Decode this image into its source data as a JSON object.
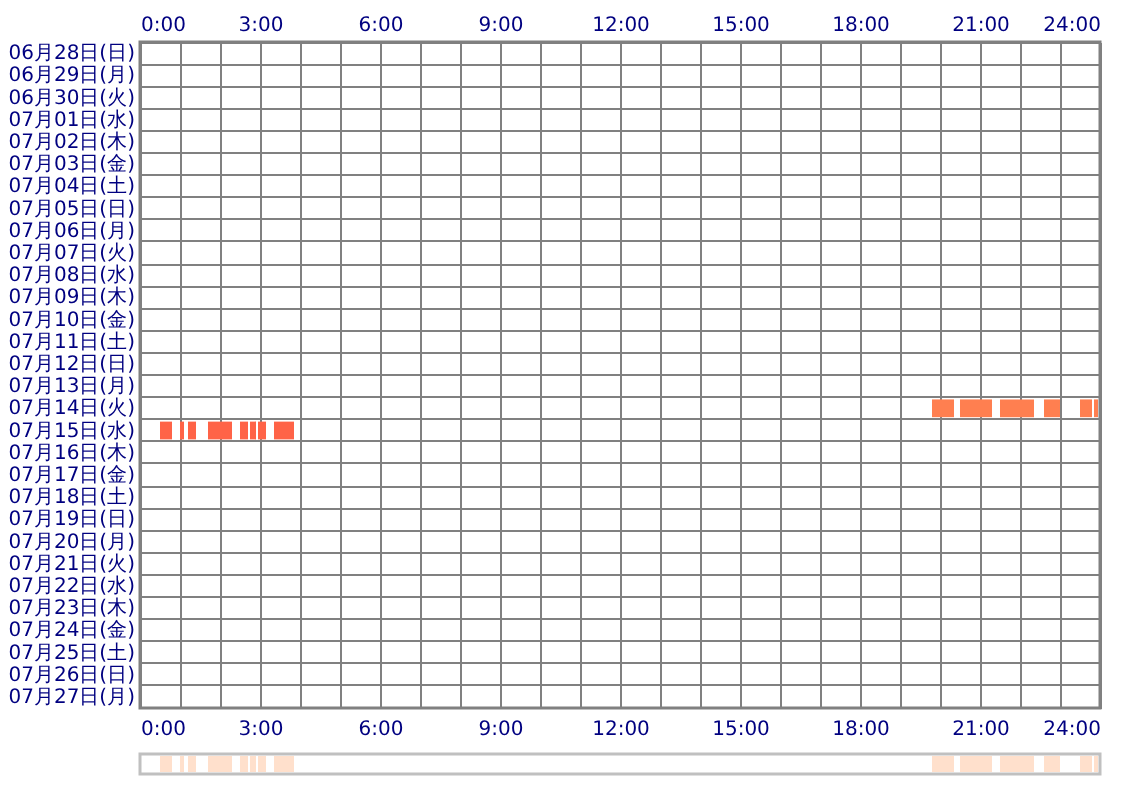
{
  "chart_data": [
    {
      "type": "bar",
      "orientation": "horizontal",
      "grid": true,
      "categories": [
        "06月28日(日)",
        "06月29日(月)",
        "06月30日(火)",
        "07月01日(水)",
        "07月02日(木)",
        "07月03日(金)",
        "07月04日(土)",
        "07月05日(日)",
        "07月06日(月)",
        "07月07日(火)",
        "07月08日(水)",
        "07月09日(木)",
        "07月10日(金)",
        "07月11日(土)",
        "07月12日(日)",
        "07月13日(月)",
        "07月14日(火)",
        "07月15日(水)",
        "07月16日(木)",
        "07月17日(金)",
        "07月18日(土)",
        "07月19日(日)",
        "07月20日(月)",
        "07月21日(火)",
        "07月22日(水)",
        "07月23日(木)",
        "07月24日(金)",
        "07月25日(土)",
        "07月26日(日)",
        "07月27日(月)"
      ],
      "xlim": [
        0,
        24
      ],
      "xticks": [
        {
          "value": 0,
          "label": "0:00"
        },
        {
          "value": 1,
          "label": null
        },
        {
          "value": 2,
          "label": null
        },
        {
          "value": 3,
          "label": "3:00"
        },
        {
          "value": 4,
          "label": null
        },
        {
          "value": 5,
          "label": null
        },
        {
          "value": 6,
          "label": "6:00"
        },
        {
          "value": 7,
          "label": null
        },
        {
          "value": 8,
          "label": null
        },
        {
          "value": 9,
          "label": "9:00"
        },
        {
          "value": 10,
          "label": null
        },
        {
          "value": 11,
          "label": null
        },
        {
          "value": 12,
          "label": "12:00"
        },
        {
          "value": 13,
          "label": null
        },
        {
          "value": 14,
          "label": null
        },
        {
          "value": 15,
          "label": "15:00"
        },
        {
          "value": 16,
          "label": null
        },
        {
          "value": 17,
          "label": null
        },
        {
          "value": 18,
          "label": "18:00"
        },
        {
          "value": 19,
          "label": null
        },
        {
          "value": 20,
          "label": null
        },
        {
          "value": 21,
          "label": "21:00"
        },
        {
          "value": 22,
          "label": null
        },
        {
          "value": 23,
          "label": null
        },
        {
          "value": 24,
          "label": "24:00"
        }
      ],
      "x2lim": [
        0,
        24
      ],
      "x2ticks": [
        {
          "value": 0,
          "label": "0:00"
        },
        {
          "value": 1,
          "label": null
        },
        {
          "value": 2,
          "label": null
        },
        {
          "value": 3,
          "label": "3:00"
        },
        {
          "value": 4,
          "label": null
        },
        {
          "value": 5,
          "label": null
        },
        {
          "value": 6,
          "label": "6:00"
        },
        {
          "value": 7,
          "label": null
        },
        {
          "value": 8,
          "label": null
        },
        {
          "value": 9,
          "label": "9:00"
        },
        {
          "value": 10,
          "label": null
        },
        {
          "value": 11,
          "label": null
        },
        {
          "value": 12,
          "label": "12:00"
        },
        {
          "value": 13,
          "label": null
        },
        {
          "value": 14,
          "label": null
        },
        {
          "value": 15,
          "label": "15:00"
        },
        {
          "value": 16,
          "label": null
        },
        {
          "value": 17,
          "label": null
        },
        {
          "value": 18,
          "label": "18:00"
        },
        {
          "value": 19,
          "label": null
        },
        {
          "value": 20,
          "label": null
        },
        {
          "value": 21,
          "label": "21:00"
        },
        {
          "value": 22,
          "label": null
        },
        {
          "value": 23,
          "label": null
        },
        {
          "value": 24,
          "label": "24:00"
        }
      ],
      "series": [
        {
          "base": [
            null,
            null,
            null,
            null,
            null,
            null,
            null,
            null,
            null,
            null,
            null,
            null,
            null,
            null,
            null,
            null,
            19.8,
            0.5,
            null,
            null,
            null,
            null,
            null,
            null,
            null,
            null,
            null,
            null,
            null,
            null
          ],
          "values": [
            null,
            null,
            null,
            null,
            null,
            null,
            null,
            null,
            null,
            null,
            null,
            null,
            null,
            null,
            null,
            null,
            0.55,
            0.3,
            null,
            null,
            null,
            null,
            null,
            null,
            null,
            null,
            null,
            null,
            null,
            null
          ],
          "colors": [
            null,
            null,
            null,
            null,
            null,
            null,
            null,
            null,
            null,
            null,
            null,
            null,
            null,
            null,
            null,
            null,
            "#ff7f50",
            "#ff6347",
            null,
            null,
            null,
            null,
            null,
            null,
            null,
            null,
            null,
            null,
            null,
            null
          ]
        },
        {
          "base": [
            null,
            null,
            null,
            null,
            null,
            null,
            null,
            null,
            null,
            null,
            null,
            null,
            null,
            null,
            null,
            null,
            20.5,
            1.0,
            null,
            null,
            null,
            null,
            null,
            null,
            null,
            null,
            null,
            null,
            null,
            null
          ],
          "values": [
            null,
            null,
            null,
            null,
            null,
            null,
            null,
            null,
            null,
            null,
            null,
            null,
            null,
            null,
            null,
            null,
            0.8,
            0.1,
            null,
            null,
            null,
            null,
            null,
            null,
            null,
            null,
            null,
            null,
            null,
            null
          ],
          "colors": [
            null,
            null,
            null,
            null,
            null,
            null,
            null,
            null,
            null,
            null,
            null,
            null,
            null,
            null,
            null,
            null,
            "#ff7f50",
            "#ff6347",
            null,
            null,
            null,
            null,
            null,
            null,
            null,
            null,
            null,
            null,
            null,
            null
          ]
        },
        {
          "base": [
            null,
            null,
            null,
            null,
            null,
            null,
            null,
            null,
            null,
            null,
            null,
            null,
            null,
            null,
            null,
            null,
            21.5,
            1.2,
            null,
            null,
            null,
            null,
            null,
            null,
            null,
            null,
            null,
            null,
            null,
            null
          ],
          "values": [
            null,
            null,
            null,
            null,
            null,
            null,
            null,
            null,
            null,
            null,
            null,
            null,
            null,
            null,
            null,
            null,
            0.85,
            0.2,
            null,
            null,
            null,
            null,
            null,
            null,
            null,
            null,
            null,
            null,
            null,
            null
          ],
          "colors": [
            null,
            null,
            null,
            null,
            null,
            null,
            null,
            null,
            null,
            null,
            null,
            null,
            null,
            null,
            null,
            null,
            "#ff7f50",
            "#ff6347",
            null,
            null,
            null,
            null,
            null,
            null,
            null,
            null,
            null,
            null,
            null,
            null
          ]
        },
        {
          "base": [
            null,
            null,
            null,
            null,
            null,
            null,
            null,
            null,
            null,
            null,
            null,
            null,
            null,
            null,
            null,
            null,
            22.6,
            1.7,
            null,
            null,
            null,
            null,
            null,
            null,
            null,
            null,
            null,
            null,
            null,
            null
          ],
          "values": [
            null,
            null,
            null,
            null,
            null,
            null,
            null,
            null,
            null,
            null,
            null,
            null,
            null,
            null,
            null,
            null,
            0.4,
            0.6,
            null,
            null,
            null,
            null,
            null,
            null,
            null,
            null,
            null,
            null,
            null,
            null
          ],
          "colors": [
            null,
            null,
            null,
            null,
            null,
            null,
            null,
            null,
            null,
            null,
            null,
            null,
            null,
            null,
            null,
            null,
            "#ff7f50",
            "#ff6347",
            null,
            null,
            null,
            null,
            null,
            null,
            null,
            null,
            null,
            null,
            null,
            null
          ]
        },
        {
          "base": [
            null,
            null,
            null,
            null,
            null,
            null,
            null,
            null,
            null,
            null,
            null,
            null,
            null,
            null,
            null,
            null,
            23.5,
            2.5,
            null,
            null,
            null,
            null,
            null,
            null,
            null,
            null,
            null,
            null,
            null,
            null
          ],
          "values": [
            null,
            null,
            null,
            null,
            null,
            null,
            null,
            null,
            null,
            null,
            null,
            null,
            null,
            null,
            null,
            null,
            0.3,
            0.2,
            null,
            null,
            null,
            null,
            null,
            null,
            null,
            null,
            null,
            null,
            null,
            null
          ],
          "colors": [
            null,
            null,
            null,
            null,
            null,
            null,
            null,
            null,
            null,
            null,
            null,
            null,
            null,
            null,
            null,
            null,
            "#ff7f50",
            "#ff6347",
            null,
            null,
            null,
            null,
            null,
            null,
            null,
            null,
            null,
            null,
            null,
            null
          ]
        },
        {
          "base": [
            null,
            null,
            null,
            null,
            null,
            null,
            null,
            null,
            null,
            null,
            null,
            null,
            null,
            null,
            null,
            null,
            23.85,
            2.75,
            null,
            null,
            null,
            null,
            null,
            null,
            null,
            null,
            null,
            null,
            null,
            null
          ],
          "values": [
            null,
            null,
            null,
            null,
            null,
            null,
            null,
            null,
            null,
            null,
            null,
            null,
            null,
            null,
            null,
            null,
            0.1,
            0.15,
            null,
            null,
            null,
            null,
            null,
            null,
            null,
            null,
            null,
            null,
            null,
            null
          ],
          "colors": [
            null,
            null,
            null,
            null,
            null,
            null,
            null,
            null,
            null,
            null,
            null,
            null,
            null,
            null,
            null,
            null,
            "#ff7f50",
            "#ff6347",
            null,
            null,
            null,
            null,
            null,
            null,
            null,
            null,
            null,
            null,
            null,
            null
          ]
        },
        {
          "base": [
            null,
            null,
            null,
            null,
            null,
            null,
            null,
            null,
            null,
            null,
            null,
            null,
            null,
            null,
            null,
            null,
            null,
            2.95,
            null,
            null,
            null,
            null,
            null,
            null,
            null,
            null,
            null,
            null,
            null,
            null
          ],
          "values": [
            null,
            null,
            null,
            null,
            null,
            null,
            null,
            null,
            null,
            null,
            null,
            null,
            null,
            null,
            null,
            null,
            null,
            0.2,
            null,
            null,
            null,
            null,
            null,
            null,
            null,
            null,
            null,
            null,
            null,
            null
          ],
          "colors": [
            null,
            null,
            null,
            null,
            null,
            null,
            null,
            null,
            null,
            null,
            null,
            null,
            null,
            null,
            null,
            null,
            null,
            "#ff6347",
            null,
            null,
            null,
            null,
            null,
            null,
            null,
            null,
            null,
            null,
            null,
            null
          ]
        },
        {
          "base": [
            null,
            null,
            null,
            null,
            null,
            null,
            null,
            null,
            null,
            null,
            null,
            null,
            null,
            null,
            null,
            null,
            null,
            3.35,
            null,
            null,
            null,
            null,
            null,
            null,
            null,
            null,
            null,
            null,
            null,
            null
          ],
          "values": [
            null,
            null,
            null,
            null,
            null,
            null,
            null,
            null,
            null,
            null,
            null,
            null,
            null,
            null,
            null,
            null,
            null,
            0.5,
            null,
            null,
            null,
            null,
            null,
            null,
            null,
            null,
            null,
            null,
            null,
            null
          ],
          "colors": [
            null,
            null,
            null,
            null,
            null,
            null,
            null,
            null,
            null,
            null,
            null,
            null,
            null,
            null,
            null,
            null,
            null,
            "#ff6347",
            null,
            null,
            null,
            null,
            null,
            null,
            null,
            null,
            null,
            null,
            null,
            null
          ]
        }
      ]
    },
    {
      "type": "bar",
      "orientation": "horizontal",
      "categories": [
        null
      ],
      "xlim": [
        0,
        24
      ],
      "series": [
        {
          "base": [
            0.5
          ],
          "values": [
            0.3
          ],
          "color": "#ffe0cc"
        },
        {
          "base": [
            1.0
          ],
          "values": [
            0.1
          ],
          "color": "#ffe0cc"
        },
        {
          "base": [
            1.2
          ],
          "values": [
            0.2
          ],
          "color": "#ffe0cc"
        },
        {
          "base": [
            1.7
          ],
          "values": [
            0.6
          ],
          "color": "#ffe0cc"
        },
        {
          "base": [
            2.5
          ],
          "values": [
            0.2
          ],
          "color": "#ffe0cc"
        },
        {
          "base": [
            2.75
          ],
          "values": [
            0.15
          ],
          "color": "#ffe0cc"
        },
        {
          "base": [
            2.95
          ],
          "values": [
            0.2
          ],
          "color": "#ffe0cc"
        },
        {
          "base": [
            3.35
          ],
          "values": [
            0.5
          ],
          "color": "#ffe0cc"
        },
        {
          "base": [
            19.8
          ],
          "values": [
            0.55
          ],
          "color": "#ffe0cc"
        },
        {
          "base": [
            20.5
          ],
          "values": [
            0.8
          ],
          "color": "#ffe0cc"
        },
        {
          "base": [
            21.5
          ],
          "values": [
            0.85
          ],
          "color": "#ffe0cc"
        },
        {
          "base": [
            22.6
          ],
          "values": [
            0.4
          ],
          "color": "#ffe0cc"
        },
        {
          "base": [
            23.5
          ],
          "values": [
            0.3
          ],
          "color": "#ffe0cc"
        },
        {
          "base": [
            23.85
          ],
          "values": [
            0.1
          ],
          "color": "#ffe0cc"
        }
      ]
    }
  ]
}
